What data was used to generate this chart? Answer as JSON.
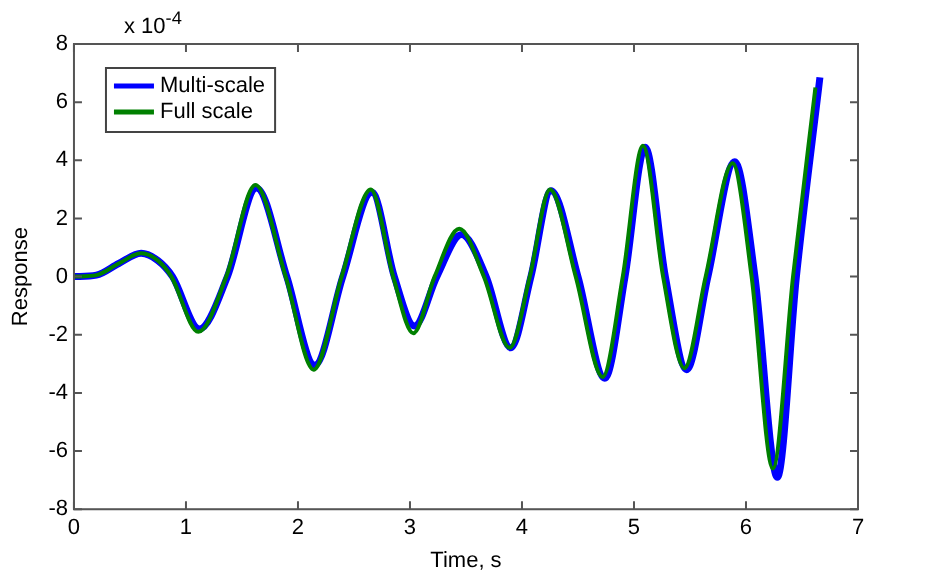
{
  "chart_data": {
    "type": "line",
    "xlabel": "Time, s",
    "ylabel": "Response",
    "annotations": [
      "x 10$^{-4}$"
    ],
    "xlim": [
      0,
      7
    ],
    "xticks": [
      0,
      1,
      2,
      3,
      4,
      5,
      6,
      7
    ],
    "ylim": [
      -8,
      8
    ],
    "yticks": [
      -8,
      -6,
      -4,
      -2,
      0,
      2,
      4,
      6,
      8
    ],
    "grid": false,
    "legend": "top left",
    "marker": "none",
    "line_style": "solid",
    "series": [
      {
        "name": "Multi-scale",
        "color": "#0000ff",
        "x": [
          0,
          0.2,
          0.4,
          0.6,
          0.75,
          0.88,
          1.12,
          1.37,
          1.63,
          1.9,
          2.15,
          2.4,
          2.66,
          2.86,
          3.04,
          3.24,
          3.46,
          3.68,
          3.9,
          4.08,
          4.26,
          4.5,
          4.74,
          4.92,
          5.1,
          5.28,
          5.47,
          5.66,
          5.9,
          6.08,
          6.28,
          6.45,
          6.66
        ],
        "values": [
          0,
          0.05,
          0.45,
          0.8,
          0.55,
          0,
          -1.8,
          0,
          3.05,
          0,
          -3.05,
          0,
          2.9,
          0,
          -1.7,
          0,
          1.45,
          0,
          -2.45,
          0,
          2.95,
          0,
          -3.5,
          0,
          4.45,
          0,
          -3.2,
          0,
          3.95,
          0,
          -6.9,
          0,
          6.85
        ]
      },
      {
        "name": "Full scale",
        "color": "#008000",
        "x": [
          0,
          0.2,
          0.4,
          0.6,
          0.75,
          0.87,
          1.11,
          1.36,
          1.62,
          1.89,
          2.14,
          2.39,
          2.65,
          2.85,
          3.03,
          3.22,
          3.44,
          3.66,
          3.89,
          4.07,
          4.25,
          4.48,
          4.72,
          4.9,
          5.08,
          5.26,
          5.45,
          5.64,
          5.88,
          6.05,
          6.24,
          6.42,
          6.62
        ],
        "values": [
          0,
          0.05,
          0.45,
          0.8,
          0.55,
          0,
          -1.9,
          0,
          3.15,
          0,
          -3.2,
          0,
          3.0,
          0,
          -1.95,
          0,
          1.65,
          0,
          -2.45,
          0,
          3.0,
          0,
          -3.45,
          0,
          4.5,
          0,
          -3.15,
          0,
          3.9,
          0,
          -6.6,
          0,
          6.5
        ]
      }
    ]
  }
}
